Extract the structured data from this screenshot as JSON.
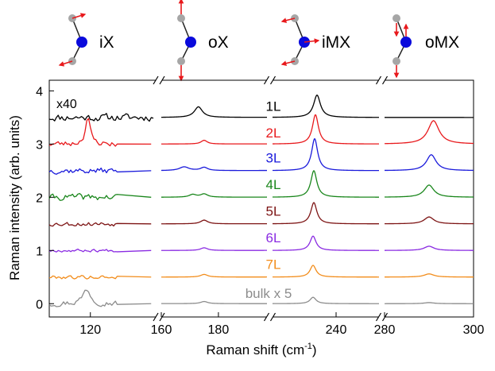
{
  "chart_data": {
    "type": "line",
    "title": "",
    "xlabel_main": "Raman shift (cm",
    "xlabel_sup": "-1",
    "xlabel_close": ")",
    "ylabel": "Raman intensity (arb. units)",
    "ylim": [
      -0.25,
      4.2
    ],
    "yticks": [
      0,
      1,
      2,
      3,
      4
    ],
    "segments": [
      {
        "name": "seg1",
        "xlim": [
          97,
          157
        ],
        "ticks": [
          120
        ]
      },
      {
        "name": "seg2",
        "xlim": [
          160,
          197
        ],
        "ticks": [
          160,
          180
        ]
      },
      {
        "name": "seg3",
        "xlim": [
          200,
          267
        ],
        "ticks": [
          240
        ]
      },
      {
        "name": "seg4",
        "xlim": [
          280,
          300
        ],
        "ticks": [
          280,
          300
        ]
      }
    ],
    "scale_note": "x40",
    "modes": [
      {
        "label": "iX",
        "type": "iX"
      },
      {
        "label": "oX",
        "type": "oX"
      },
      {
        "label": "iMX",
        "type": "iMX"
      },
      {
        "label": "oMX",
        "type": "oMX"
      }
    ],
    "series": [
      {
        "name": "1L",
        "label": "1L",
        "offset": 3.5,
        "color": "#000000",
        "peaks": [
          {
            "x": 173,
            "h": 0.2,
            "w": 1.7
          },
          {
            "x": 228,
            "h": 0.42,
            "w": 2.6
          }
        ],
        "noise": 0.1,
        "seed": 11,
        "range1_end": 155
      },
      {
        "name": "2L",
        "label": "2L",
        "offset": 3.0,
        "color": "#e8191c",
        "peaks": [
          {
            "x": 118.5,
            "h": 0.5,
            "w": 1.6
          },
          {
            "x": 175,
            "h": 0.07,
            "w": 1.3
          },
          {
            "x": 227,
            "h": 0.55,
            "w": 2.3
          },
          {
            "x": 291,
            "h": 0.44,
            "w": 1.5
          }
        ],
        "noise": 0.08,
        "seed": 23,
        "range1_end": 135
      },
      {
        "name": "3L",
        "label": "3L",
        "offset": 2.5,
        "color": "#1a1adb",
        "peaks": [
          {
            "x": 168,
            "h": 0.07,
            "w": 2
          },
          {
            "x": 175,
            "h": 0.06,
            "w": 1.5
          },
          {
            "x": 226.5,
            "h": 0.6,
            "w": 2.3
          },
          {
            "x": 290.5,
            "h": 0.3,
            "w": 1.3
          }
        ],
        "noise": 0.08,
        "seed": 37,
        "range1_end": 135
      },
      {
        "name": "4L",
        "label": "4L",
        "offset": 2.0,
        "color": "#19861b",
        "peaks": [
          {
            "x": 171,
            "h": 0.05,
            "w": 1.5
          },
          {
            "x": 175,
            "h": 0.06,
            "w": 1.5
          },
          {
            "x": 226,
            "h": 0.5,
            "w": 2.3
          },
          {
            "x": 290,
            "h": 0.23,
            "w": 1.3
          }
        ],
        "noise": 0.09,
        "seed": 41,
        "range1_end": 135
      },
      {
        "name": "5L",
        "label": "5L",
        "offset": 1.5,
        "color": "#7d1414",
        "peaks": [
          {
            "x": 175,
            "h": 0.07,
            "w": 1.5
          },
          {
            "x": 226,
            "h": 0.4,
            "w": 2.3
          },
          {
            "x": 290,
            "h": 0.13,
            "w": 1.3
          }
        ],
        "noise": 0.06,
        "seed": 53,
        "range1_end": 135
      },
      {
        "name": "6L",
        "label": "6L",
        "offset": 1.0,
        "color": "#8a2be2",
        "peaks": [
          {
            "x": 175,
            "h": 0.05,
            "w": 1.5
          },
          {
            "x": 225.5,
            "h": 0.27,
            "w": 2.3
          },
          {
            "x": 290,
            "h": 0.08,
            "w": 1.3
          }
        ],
        "noise": 0.04,
        "seed": 67,
        "range1_end": 135
      },
      {
        "name": "7L",
        "label": "7L",
        "offset": 0.5,
        "color": "#f28c1a",
        "peaks": [
          {
            "x": 175,
            "h": 0.05,
            "w": 1.5
          },
          {
            "x": 225.5,
            "h": 0.22,
            "w": 2.3
          },
          {
            "x": 290,
            "h": 0.06,
            "w": 1.3
          }
        ],
        "noise": 0.05,
        "seed": 79,
        "range1_end": 135
      },
      {
        "name": "bulk x 5",
        "label": "bulk x 5",
        "offset": 0.0,
        "color": "#8c8c8c",
        "peaks": [
          {
            "x": 118,
            "h": 0.28,
            "w": 2.5
          },
          {
            "x": 175,
            "h": 0.04,
            "w": 1.5
          },
          {
            "x": 225.5,
            "h": 0.12,
            "w": 2.3
          },
          {
            "x": 290,
            "h": 0.02,
            "w": 1.3
          }
        ],
        "noise": 0.08,
        "seed": 97,
        "range1_end": 135
      }
    ]
  }
}
